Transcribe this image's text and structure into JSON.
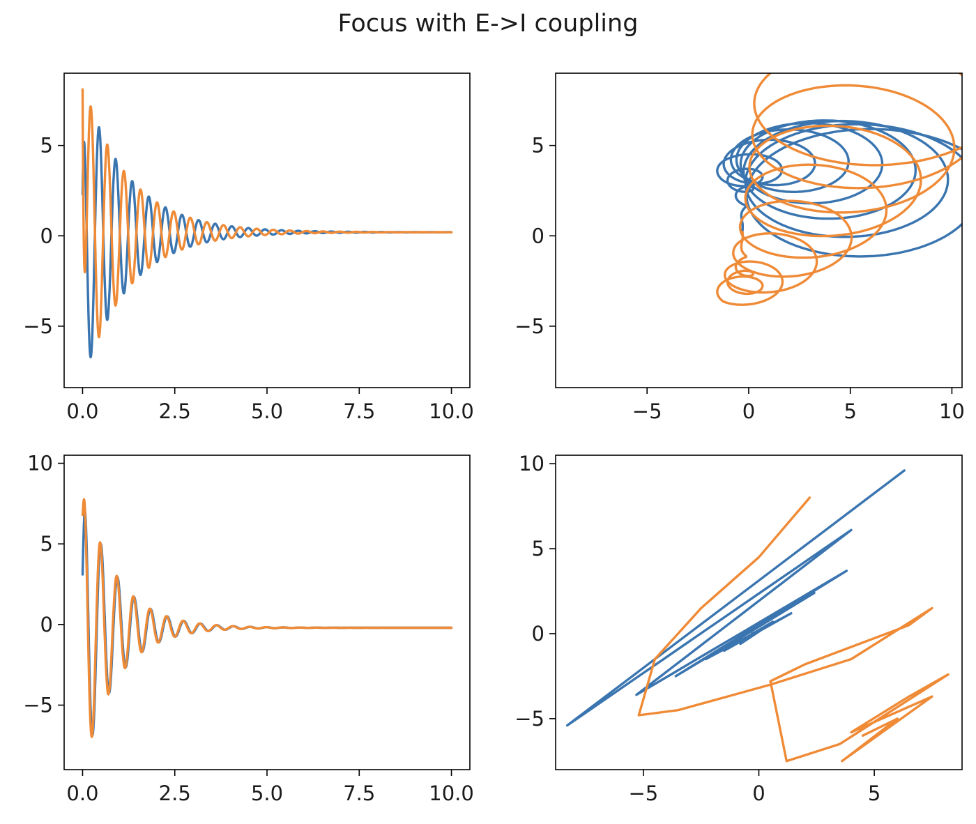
{
  "figure": {
    "suptitle": "Focus with E->I coupling"
  },
  "colors": {
    "series1": "#3a75b0",
    "series2": "#ef8a36",
    "axis": "#000000"
  },
  "chart_data": [
    {
      "type": "line",
      "panel": "top-left",
      "xlim": [
        -0.5,
        10.5
      ],
      "ylim": [
        -8.4,
        9.0
      ],
      "xticks": [
        "0.0",
        "2.5",
        "5.0",
        "7.5",
        "10.0"
      ],
      "yticks": [
        "−5",
        "0",
        "5"
      ],
      "series": [
        {
          "model": "decay_osc",
          "y0": 2.3,
          "A": 8.3,
          "tau": 1.25,
          "period": 0.45,
          "phase": 1.6,
          "offset": 0.2,
          "t_end": 10
        },
        {
          "model": "decay_osc",
          "y0": 8.1,
          "A": -8.3,
          "tau": 1.25,
          "period": 0.45,
          "phase": 1.6,
          "offset": 0.2,
          "t_end": 10
        }
      ]
    },
    {
      "type": "line",
      "panel": "top-right",
      "xlim": [
        -9.5,
        10.5
      ],
      "ylim": [
        -8.4,
        9.0
      ],
      "xticks": [
        "−5",
        "0",
        "5",
        "10"
      ],
      "yticks": [
        "−5",
        "0",
        "5"
      ],
      "series": [
        {
          "model": "spiral",
          "start": [
            6.2,
            2.0
          ],
          "end": [
            -0.3,
            0.3
          ],
          "sweep": 1.0
        },
        {
          "model": "spiral",
          "start": [
            6.6,
            8.0
          ],
          "end": [
            -0.3,
            0.2
          ],
          "sweep": -1.0
        }
      ]
    },
    {
      "type": "line",
      "panel": "bottom-left",
      "xlim": [
        -0.5,
        10.5
      ],
      "ylim": [
        -9.0,
        10.5
      ],
      "xticks": [
        "0.0",
        "2.5",
        "5.0",
        "7.5",
        "10.0"
      ],
      "yticks": [
        "−5",
        "0",
        "5",
        "10"
      ],
      "series": [
        {
          "model": "decay_osc",
          "y0": 3.1,
          "A": 9.0,
          "tau": 0.9,
          "period": 0.45,
          "phase": 0.9,
          "offset": -0.2,
          "t_end": 10
        },
        {
          "model": "decay_osc",
          "y0": 6.8,
          "A": 9.0,
          "tau": 0.9,
          "period": 0.45,
          "phase": 1.15,
          "offset": -0.2,
          "t_end": 10
        }
      ]
    },
    {
      "type": "line",
      "panel": "bottom-right",
      "xlim": [
        -8.8,
        8.8
      ],
      "ylim": [
        -8.0,
        10.5
      ],
      "xticks": [
        "−5",
        "0",
        "5"
      ],
      "yticks": [
        "−5",
        "0",
        "5",
        "10"
      ],
      "series": [
        {
          "model": "diagonal_zigzag",
          "points": [
            [
              6.3,
              9.6
            ],
            [
              -8.3,
              -5.4
            ],
            [
              4.0,
              6.1
            ],
            [
              -5.3,
              -3.6
            ],
            [
              3.8,
              3.7
            ],
            [
              -3.6,
              -2.5
            ],
            [
              2.4,
              2.4
            ],
            [
              -2.3,
              -1.5
            ],
            [
              1.4,
              1.2
            ],
            [
              -1.5,
              -1.0
            ],
            [
              0.6,
              0.7
            ],
            [
              -0.8,
              -0.6
            ],
            [
              0.2,
              0.3
            ],
            [
              -0.3,
              0.0
            ]
          ]
        },
        {
          "model": "polyline",
          "points": [
            [
              2.2,
              8.0
            ],
            [
              0.0,
              4.5
            ],
            [
              -2.5,
              1.5
            ],
            [
              -4.5,
              -1.5
            ],
            [
              -5.2,
              -4.8
            ],
            [
              -3.5,
              -4.5
            ],
            [
              0.5,
              -3.0
            ],
            [
              4.0,
              -1.5
            ],
            [
              7.5,
              1.5
            ],
            [
              6.5,
              0.5
            ],
            [
              2.0,
              -1.8
            ],
            [
              0.5,
              -2.8
            ],
            [
              1.2,
              -7.5
            ],
            [
              3.5,
              -6.5
            ],
            [
              8.2,
              -2.4
            ],
            [
              6.5,
              -3.7
            ],
            [
              4.0,
              -5.8
            ],
            [
              7.5,
              -3.7
            ],
            [
              3.6,
              -7.5
            ],
            [
              6.0,
              -5.0
            ],
            [
              4.5,
              -6.0
            ]
          ]
        }
      ]
    }
  ]
}
